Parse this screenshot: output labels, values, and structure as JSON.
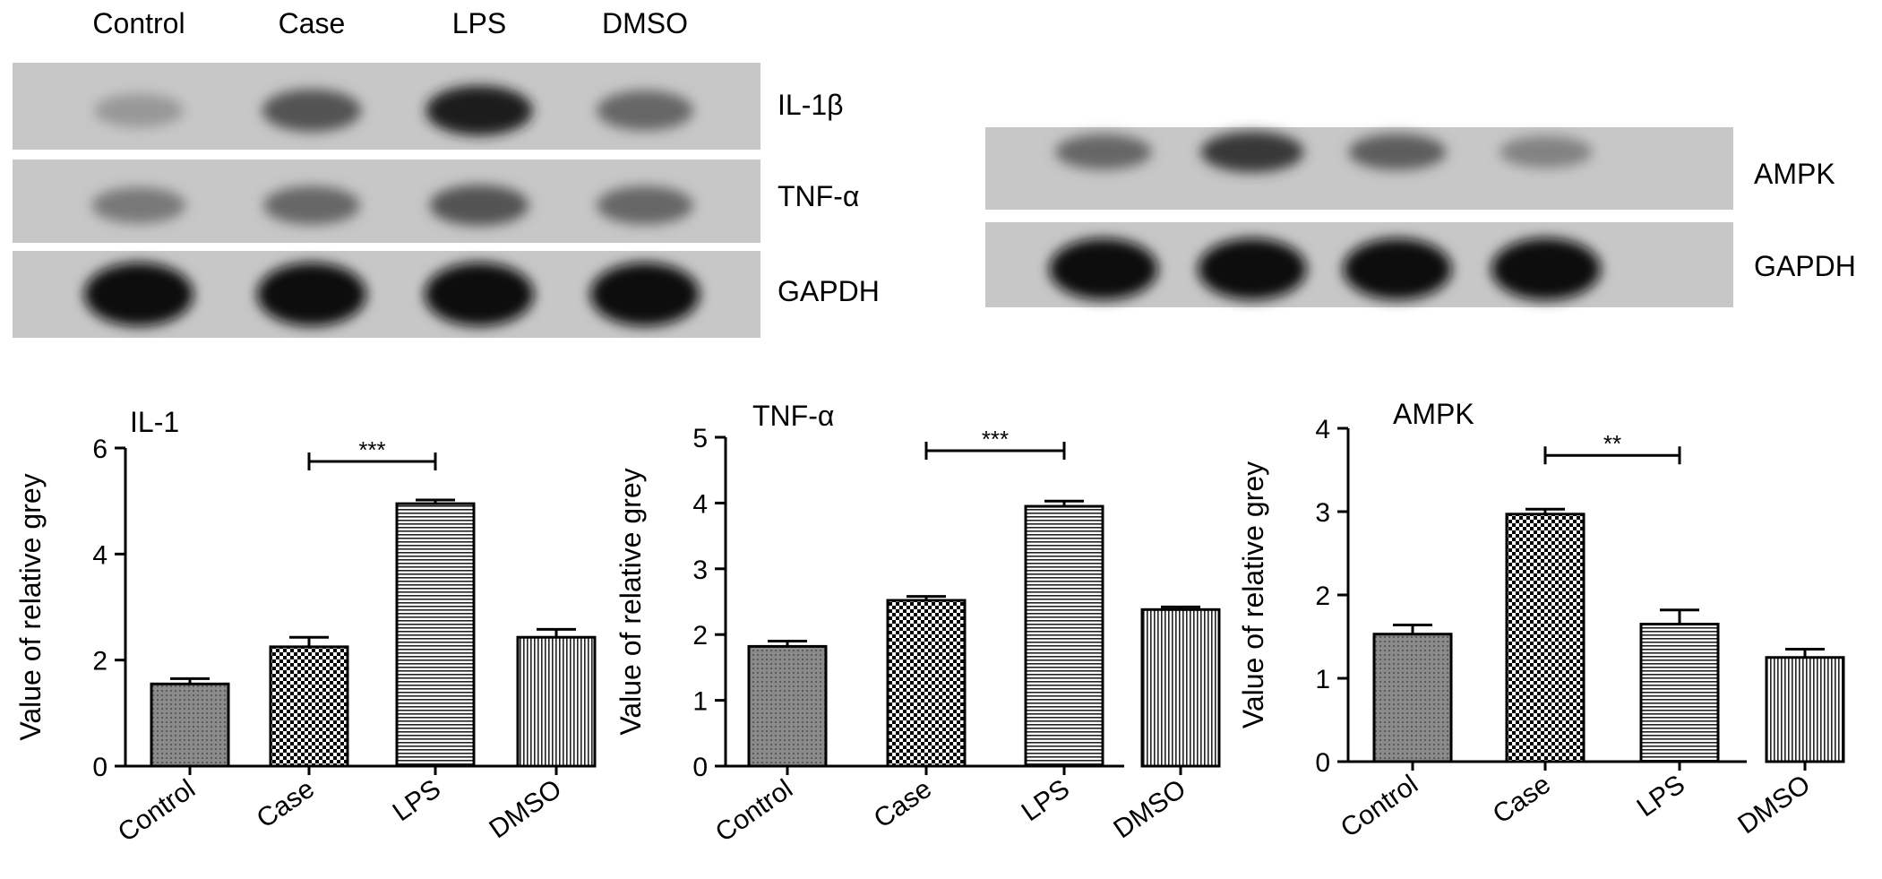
{
  "blots": {
    "lane_labels": [
      "Control",
      "Case",
      "LPS",
      "DMSO"
    ],
    "left": {
      "rows": [
        {
          "label": "IL-1β",
          "intensities": [
            0.18,
            0.55,
            0.85,
            0.45
          ]
        },
        {
          "label": "TNF-α",
          "intensities": [
            0.35,
            0.45,
            0.55,
            0.45
          ]
        },
        {
          "label": "GAPDH",
          "intensities": [
            0.95,
            0.95,
            0.95,
            0.95
          ]
        }
      ]
    },
    "right": {
      "rows": [
        {
          "label": "AMPK",
          "intensities": [
            0.45,
            0.7,
            0.5,
            0.3
          ]
        },
        {
          "label": "GAPDH",
          "intensities": [
            0.92,
            0.92,
            0.92,
            0.95
          ]
        }
      ]
    }
  },
  "chart_data": [
    {
      "type": "bar",
      "title": "IL-1",
      "ylabel": "Value of relative grey",
      "xlabel": "",
      "categories": [
        "Control",
        "Case",
        "LPS",
        "DMSO"
      ],
      "values": [
        1.55,
        2.25,
        4.95,
        2.43
      ],
      "errors": [
        0.1,
        0.18,
        0.07,
        0.15
      ],
      "ylim": [
        0,
        6
      ],
      "yticks": [
        0,
        2,
        4,
        6
      ],
      "significance": {
        "from": "Case",
        "to": "LPS",
        "label": "***"
      },
      "patterns": [
        "dots",
        "checker",
        "hlines",
        "vlines"
      ]
    },
    {
      "type": "bar",
      "title": "TNF-α",
      "ylabel": "Value of relative grey",
      "xlabel": "",
      "categories": [
        "Control",
        "Case",
        "LPS",
        "DMSO"
      ],
      "values": [
        1.82,
        2.52,
        3.95,
        2.38
      ],
      "errors": [
        0.08,
        0.06,
        0.08,
        0.04
      ],
      "ylim": [
        0,
        5
      ],
      "yticks": [
        0,
        1,
        2,
        3,
        4,
        5
      ],
      "significance": {
        "from": "Case",
        "to": "LPS",
        "label": "***"
      },
      "patterns": [
        "dots",
        "checker",
        "hlines",
        "vlines"
      ]
    },
    {
      "type": "bar",
      "title": "AMPK",
      "ylabel": "Value of relative grey",
      "xlabel": "",
      "categories": [
        "Control",
        "Case",
        "LPS",
        "DMSO"
      ],
      "values": [
        1.53,
        2.97,
        1.65,
        1.25
      ],
      "errors": [
        0.11,
        0.06,
        0.17,
        0.1
      ],
      "ylim": [
        0,
        4
      ],
      "yticks": [
        0,
        1,
        2,
        3,
        4
      ],
      "significance": {
        "from": "Case",
        "to": "LPS",
        "label": "**"
      },
      "patterns": [
        "dots",
        "checker",
        "hlines",
        "vlines"
      ]
    }
  ]
}
